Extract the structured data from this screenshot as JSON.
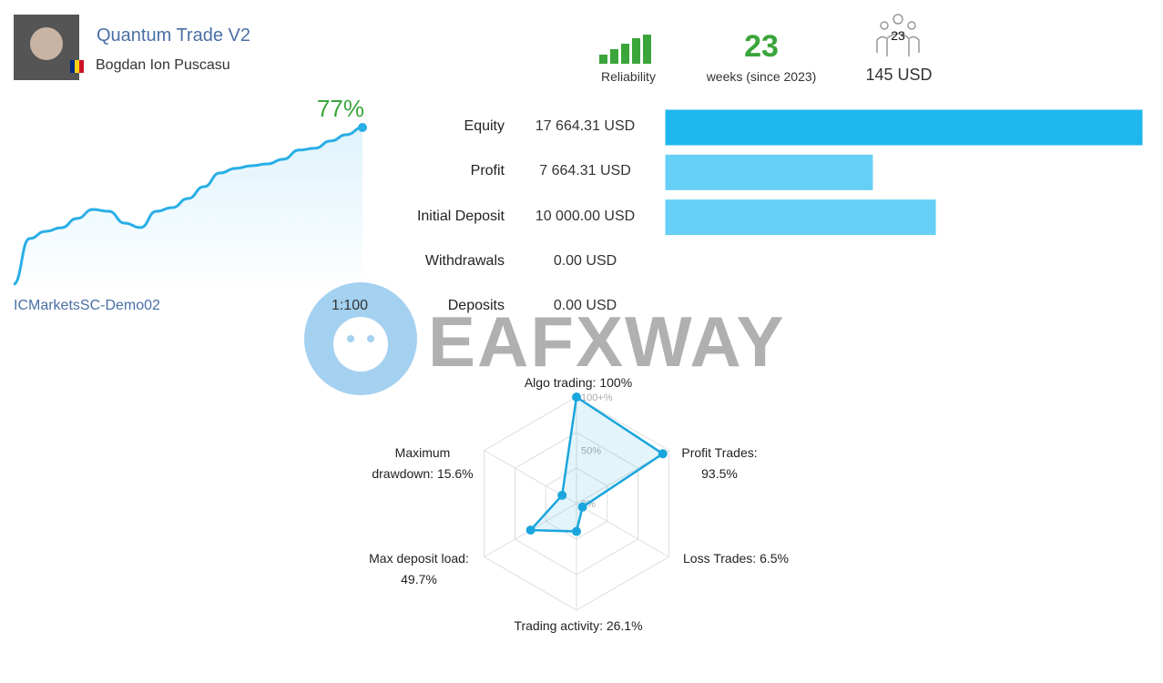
{
  "header": {
    "title": "Quantum Trade V2",
    "author": "Bogdan Ion Puscasu",
    "reliability_label": "Reliability",
    "weeks": "23",
    "weeks_label": "weeks (since 2023)",
    "subscribers": "23",
    "price": "145 USD"
  },
  "growth": {
    "value_label": "77%",
    "values": [
      0,
      22.4,
      25.9,
      27.7,
      32.3,
      36.7,
      35.8,
      30.0,
      27.8,
      35.8,
      37.6,
      42.1,
      47.9,
      54.6,
      56.9,
      58.2,
      59.1,
      61.4,
      65.9,
      66.8,
      70.4,
      73.5,
      77
    ],
    "color": "#29aee6",
    "broker": "ICMarketsSC-Demo02",
    "leverage": "1:100"
  },
  "balance": {
    "rows": [
      {
        "label": "Equity",
        "value": 17664.31,
        "value_label": "17 664.31 USD",
        "color": "#1fb6ee"
      },
      {
        "label": "Profit",
        "value": 7664.31,
        "value_label": "7 664.31 USD",
        "color": "#66cff5"
      },
      {
        "label": "Initial Deposit",
        "value": 10000.0,
        "value_label": "10 000.00 USD",
        "color": "#66cff5"
      },
      {
        "label": "Withdrawals",
        "value": 0.0,
        "value_label": "0.00 USD",
        "color": "#66cff5"
      },
      {
        "label": "Deposits",
        "value": 0.0,
        "value_label": "0.00 USD",
        "color": "#66cff5"
      }
    ]
  },
  "radar": {
    "color": "#1aa6dc",
    "ticks": [
      {
        "value": 0,
        "label": "0%"
      },
      {
        "value": 50,
        "label": "50%"
      },
      {
        "value": 100,
        "label": "100+%"
      }
    ],
    "axes": [
      {
        "name": "Algo trading:",
        "value": 100,
        "value_label": "100%"
      },
      {
        "name": "Profit Trades:",
        "value": 93.5,
        "value_label": "93.5%"
      },
      {
        "name": "Loss Trades:",
        "value": 6.5,
        "value_label": "6.5%"
      },
      {
        "name": "Trading activity:",
        "value": 26.1,
        "value_label": "26.1%"
      },
      {
        "name": "Max deposit load:",
        "value": 49.7,
        "value_label": "49.7%"
      },
      {
        "name": "Maximum drawdown:",
        "value": 15.6,
        "value_label": "15.6%"
      }
    ]
  },
  "watermark": "EAFXWAY"
}
